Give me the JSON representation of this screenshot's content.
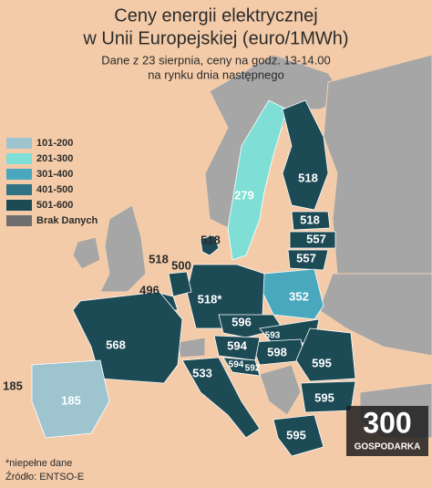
{
  "title": [
    "Ceny energii elektrycznej",
    "w Unii Europejskiej (euro/1MWh)"
  ],
  "subtitle": [
    "Dane z 23 sierpnia, ceny na godz. 13-14.00",
    "na rynku dnia następnego"
  ],
  "legend": [
    "101-200",
    "201-300",
    "301-400",
    "401-500",
    "501-600",
    "Brak Danych"
  ],
  "labels": [
    "279",
    "518",
    "518",
    "557",
    "557",
    "352",
    "518",
    "518",
    "500",
    "496",
    "518*",
    "596",
    "593",
    "598",
    "568",
    "594",
    "594",
    "592",
    "533",
    "595",
    "595",
    "595",
    "185",
    "185"
  ],
  "footnote": "*niepełne dane",
  "source": "Źródło: ENTSO-E",
  "logo": {
    "number": "300",
    "name": "GOSPODARKA"
  }
}
